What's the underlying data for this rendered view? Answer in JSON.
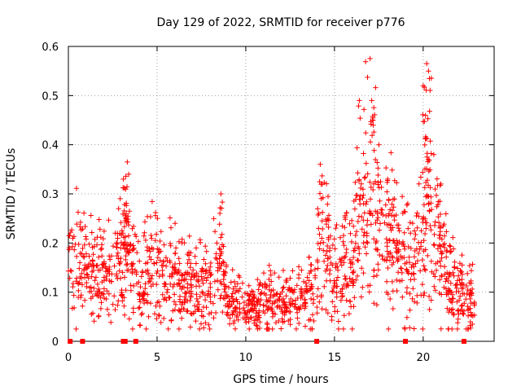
{
  "chart_data": {
    "type": "scatter",
    "title": "Day 129 of 2022, SRMTID for receiver p776",
    "xlabel": "GPS time / hours",
    "ylabel": "SRMTID / TECUs",
    "xlim": [
      0,
      24
    ],
    "ylim": [
      0,
      0.6
    ],
    "x_ticks": [
      "0",
      "5",
      "10",
      "15",
      "20"
    ],
    "y_ticks": [
      "0",
      "0.1",
      "0.2",
      "0.3",
      "0.4",
      "0.5",
      "0.6"
    ],
    "grid": true,
    "marker": "plus",
    "color": "#ff0000",
    "trend": [
      [
        0.0,
        0.19
      ],
      [
        0.5,
        0.17
      ],
      [
        1.0,
        0.15
      ],
      [
        1.5,
        0.14
      ],
      [
        2.0,
        0.14
      ],
      [
        2.5,
        0.15
      ],
      [
        3.0,
        0.16
      ],
      [
        3.3,
        0.22
      ],
      [
        3.6,
        0.16
      ],
      [
        4.0,
        0.1
      ],
      [
        4.5,
        0.15
      ],
      [
        5.0,
        0.16
      ],
      [
        5.5,
        0.13
      ],
      [
        6.0,
        0.14
      ],
      [
        6.5,
        0.13
      ],
      [
        7.0,
        0.12
      ],
      [
        7.5,
        0.11
      ],
      [
        8.0,
        0.11
      ],
      [
        8.5,
        0.16
      ],
      [
        9.0,
        0.08
      ],
      [
        9.5,
        0.08
      ],
      [
        10.0,
        0.07
      ],
      [
        10.5,
        0.07
      ],
      [
        11.0,
        0.08
      ],
      [
        11.5,
        0.09
      ],
      [
        12.0,
        0.08
      ],
      [
        12.5,
        0.08
      ],
      [
        13.0,
        0.09
      ],
      [
        13.5,
        0.09
      ],
      [
        14.0,
        0.13
      ],
      [
        14.3,
        0.22
      ],
      [
        14.7,
        0.18
      ],
      [
        15.0,
        0.12
      ],
      [
        15.5,
        0.15
      ],
      [
        16.0,
        0.17
      ],
      [
        16.5,
        0.25
      ],
      [
        17.0,
        0.32
      ],
      [
        17.5,
        0.27
      ],
      [
        18.0,
        0.2
      ],
      [
        18.5,
        0.19
      ],
      [
        19.0,
        0.17
      ],
      [
        19.5,
        0.16
      ],
      [
        20.0,
        0.22
      ],
      [
        20.2,
        0.33
      ],
      [
        20.5,
        0.25
      ],
      [
        21.0,
        0.18
      ],
      [
        21.5,
        0.12
      ],
      [
        22.0,
        0.1
      ],
      [
        22.5,
        0.1
      ],
      [
        22.9,
        0.08
      ]
    ],
    "peaks": [
      [
        3.1,
        0.33
      ],
      [
        3.4,
        0.34
      ],
      [
        8.6,
        0.3
      ],
      [
        14.2,
        0.36
      ],
      [
        16.4,
        0.49
      ],
      [
        17.1,
        0.49
      ],
      [
        17.5,
        0.4
      ],
      [
        18.0,
        0.33
      ],
      [
        20.0,
        0.52
      ],
      [
        20.2,
        0.565
      ],
      [
        20.3,
        0.55
      ],
      [
        21.0,
        0.32
      ]
    ],
    "gap_markers_x": [
      0.1,
      0.8,
      3.1,
      3.2,
      3.8,
      14.0,
      19.0,
      22.3
    ]
  }
}
